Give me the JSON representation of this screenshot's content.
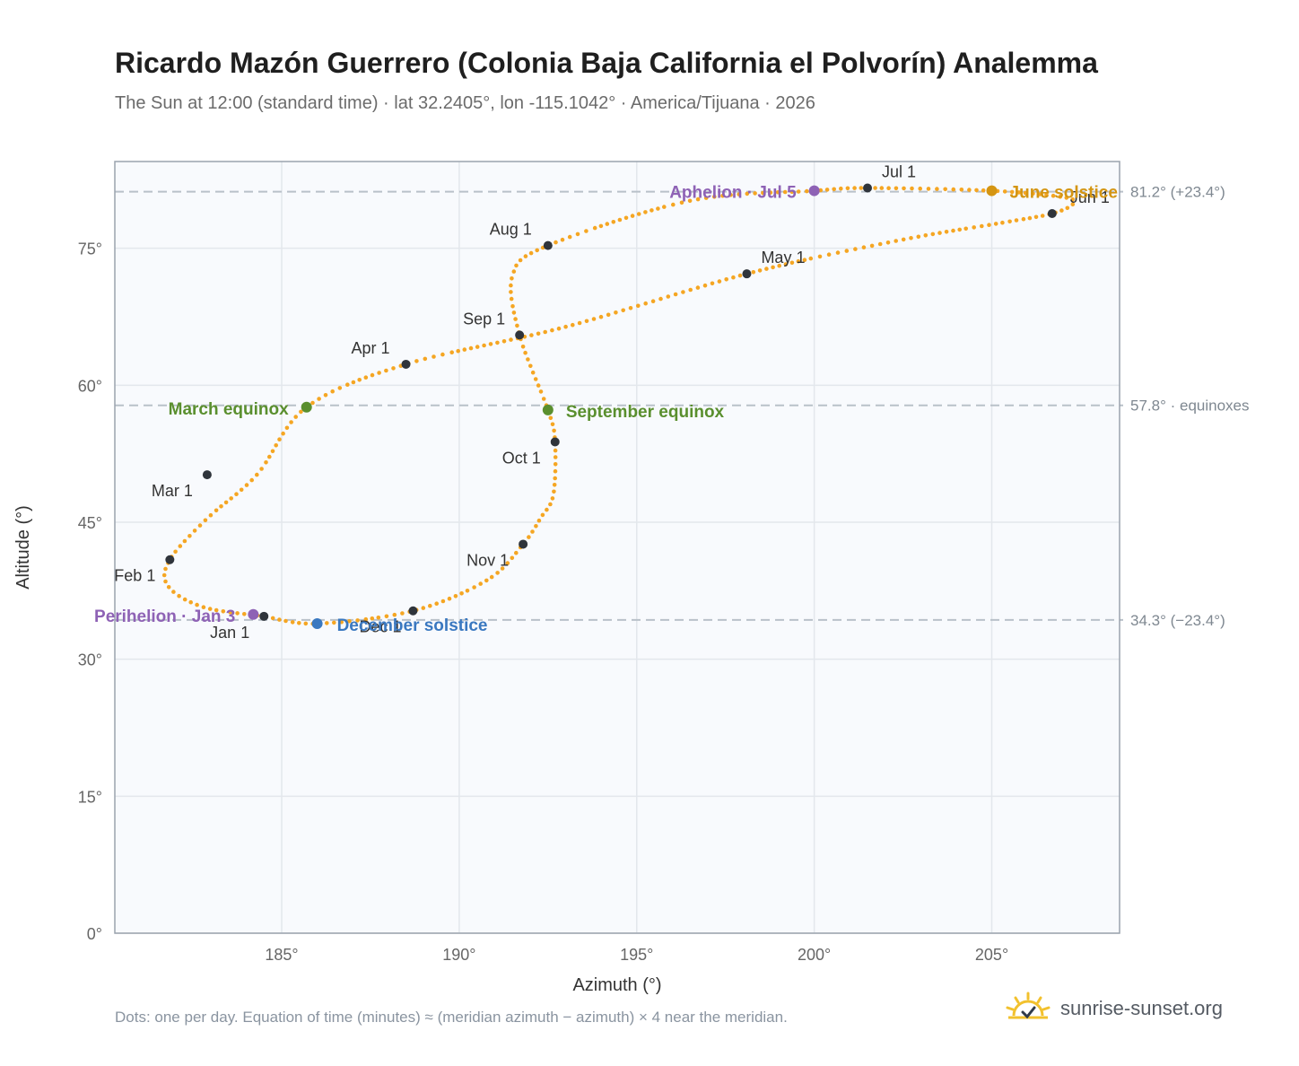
{
  "header": {
    "title": "Ricardo Mazón Guerrero (Colonia Baja California el Polvorín) Analemma",
    "subtitle": "The Sun at 12:00 (standard time) · lat 32.2405°, lon -115.1042° · America/Tijuana · 2026"
  },
  "footer": {
    "note": "Dots: one per day. Equation of time (minutes) ≈ (meridian azimuth − azimuth) × 4 near the meridian.",
    "brand": "sunrise-sunset.org"
  },
  "colors": {
    "curve": "#f5a623",
    "month_marker": "#2f343b",
    "equinox": "#5a8f2e",
    "june_solstice": "#d49512",
    "december_solstice": "#3a78c0",
    "perihelion_aphelion": "#8e62b5",
    "reference_line": "#b9c1c9",
    "plot_background": "#f8fafd",
    "grid": "#e3e7ec",
    "axis_frame": "#9aa3ad"
  },
  "chart_data": {
    "type": "scatter",
    "xlabel": "Azimuth (°)",
    "ylabel": "Altitude (°)",
    "xlim": [
      180.3,
      208.6
    ],
    "ylim": [
      0,
      84.5
    ],
    "xticks": [
      185,
      190,
      195,
      200,
      205
    ],
    "yticks": [
      0,
      15,
      30,
      45,
      60,
      75
    ],
    "x_tick_labels": [
      "185°",
      "190°",
      "195°",
      "200°",
      "205°"
    ],
    "y_tick_labels": [
      "0°",
      "15°",
      "30°",
      "45°",
      "60°",
      "75°"
    ],
    "grid": true,
    "reference_lines": [
      {
        "y": 81.2,
        "label": "81.2° (+23.4°)"
      },
      {
        "y": 57.8,
        "label": "57.8° · equinoxes"
      },
      {
        "y": 34.3,
        "label": "34.3° (−23.4°)"
      }
    ],
    "series": [
      {
        "path_azimuth": [
          184.5,
          182.8,
          181.8,
          181.85,
          182.9,
          184.3,
          185.7,
          188.5,
          193.0,
          198.1,
          202.3,
          205.3,
          206.7,
          207.3,
          207.0,
          205.0,
          201.5,
          200.0,
          196.5,
          192.5,
          191.5,
          191.7,
          192.5,
          192.7,
          192.65,
          192.3,
          191.8,
          190.8,
          188.7,
          186.0,
          184.5
        ],
        "path_altitude": [
          34.7,
          35.7,
          38.0,
          40.9,
          45.4,
          50.2,
          57.6,
          62.3,
          66.4,
          72.2,
          75.8,
          77.8,
          78.8,
          79.9,
          80.6,
          81.3,
          81.6,
          81.3,
          80.2,
          75.3,
          72.0,
          65.5,
          57.3,
          53.8,
          48.0,
          45.5,
          42.6,
          38.7,
          35.3,
          33.9,
          34.7
        ]
      }
    ],
    "month_markers": [
      {
        "label": "Jan 1",
        "azimuth": 184.5,
        "altitude": 34.7
      },
      {
        "label": "Feb 1",
        "azimuth": 181.85,
        "altitude": 40.9
      },
      {
        "label": "Mar 1",
        "azimuth": 182.9,
        "altitude": 50.2
      },
      {
        "label": "Apr 1",
        "azimuth": 188.5,
        "altitude": 62.3
      },
      {
        "label": "May 1",
        "azimuth": 198.1,
        "altitude": 72.2
      },
      {
        "label": "Jun 1",
        "azimuth": 206.7,
        "altitude": 78.8
      },
      {
        "label": "Jul 1",
        "azimuth": 201.5,
        "altitude": 81.6
      },
      {
        "label": "Aug 1",
        "azimuth": 192.5,
        "altitude": 75.3
      },
      {
        "label": "Sep 1",
        "azimuth": 191.7,
        "altitude": 65.5
      },
      {
        "label": "Oct 1",
        "azimuth": 192.7,
        "altitude": 53.8
      },
      {
        "label": "Nov 1",
        "azimuth": 191.8,
        "altitude": 42.6
      },
      {
        "label": "Dec 1",
        "azimuth": 188.7,
        "altitude": 35.3
      }
    ],
    "events": [
      {
        "label": "March equinox",
        "azimuth": 185.7,
        "altitude": 57.6,
        "kind": "equinox"
      },
      {
        "label": "September equinox",
        "azimuth": 192.5,
        "altitude": 57.3,
        "kind": "equinox"
      },
      {
        "label": "June solstice",
        "azimuth": 205.0,
        "altitude": 81.3,
        "kind": "june_solstice"
      },
      {
        "label": "December solstice",
        "azimuth": 186.0,
        "altitude": 33.9,
        "kind": "december_solstice"
      },
      {
        "label": "Perihelion · Jan 3",
        "azimuth": 184.2,
        "altitude": 34.9,
        "kind": "perihelion_aphelion"
      },
      {
        "label": "Aphelion · Jul 5",
        "azimuth": 200.0,
        "altitude": 81.3,
        "kind": "perihelion_aphelion"
      }
    ]
  }
}
